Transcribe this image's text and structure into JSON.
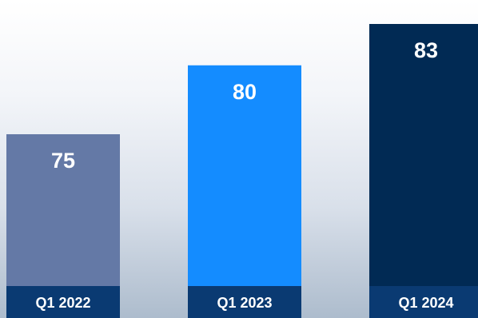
{
  "chart_data": {
    "type": "bar",
    "categories": [
      "Q1 2022",
      "Q1 2023",
      "Q1 2024"
    ],
    "values": [
      75,
      80,
      83
    ],
    "title": "",
    "xlabel": "",
    "ylabel": "",
    "colors": [
      "#6479a6",
      "#148cff",
      "#012a54"
    ],
    "label_band_color": "#0a3a72",
    "value_label_color": "#ffffff",
    "grid": false,
    "legend": "none"
  }
}
